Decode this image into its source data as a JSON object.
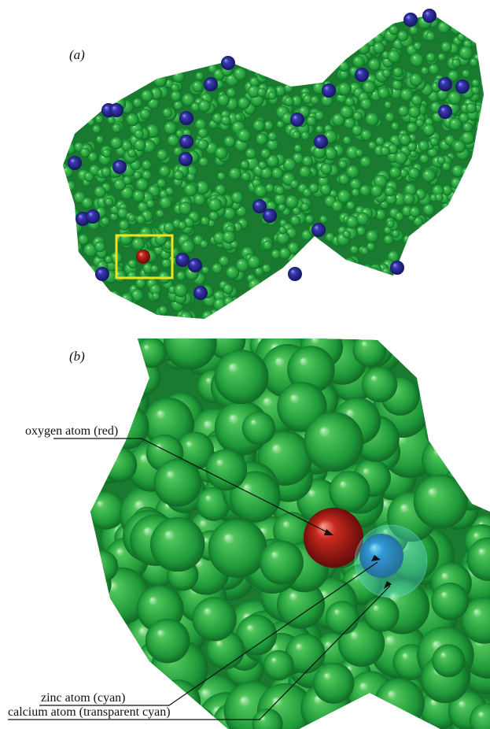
{
  "panels": [
    {
      "label": "(a)"
    },
    {
      "label": "(b)"
    }
  ],
  "annotations": [
    "oxygen atom (red)",
    "zinc atom (cyan)",
    "calcium atom (transparent cyan)"
  ]
}
